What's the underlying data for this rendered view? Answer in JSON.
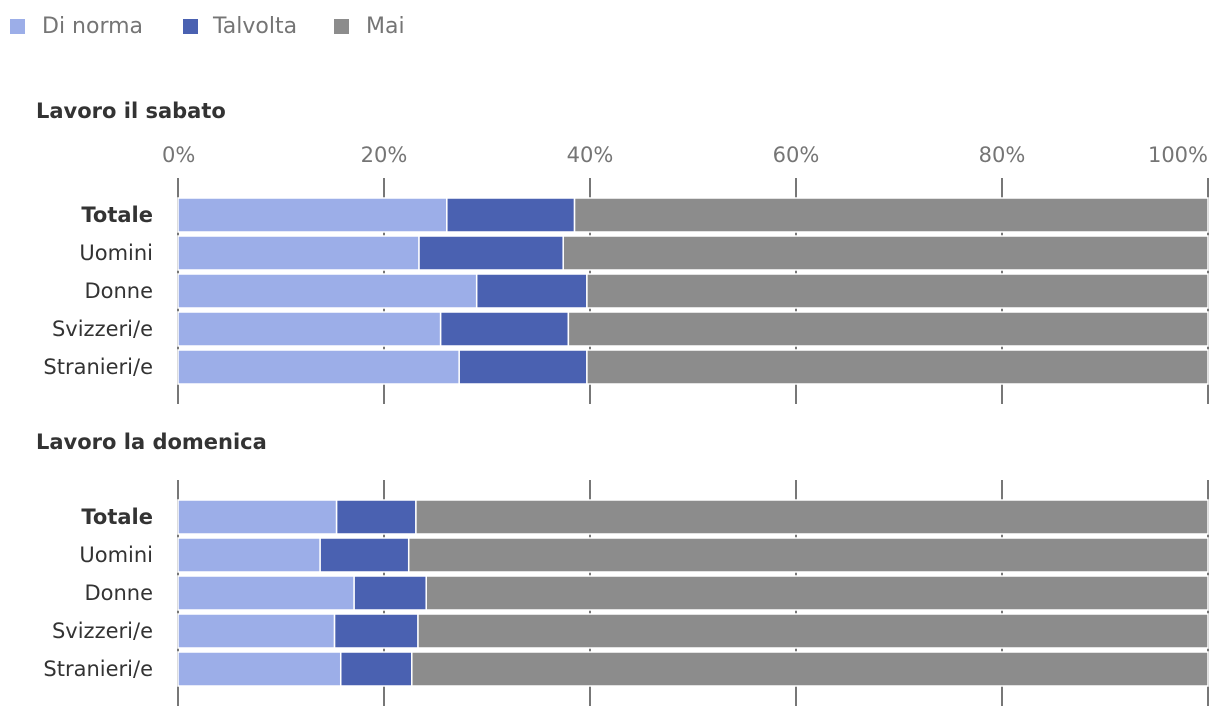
{
  "chart_data": {
    "type": "bar",
    "orientation": "horizontal",
    "stacked": true,
    "legend": [
      {
        "name": "Di norma",
        "color": "#9caee8"
      },
      {
        "name": "Talvolta",
        "color": "#4a61b1"
      },
      {
        "name": "Mai",
        "color": "#8c8c8c"
      }
    ],
    "xlim": [
      0,
      100
    ],
    "xticks": [
      {
        "value": 0,
        "label": "0%"
      },
      {
        "value": 20,
        "label": "20%"
      },
      {
        "value": 40,
        "label": "40%"
      },
      {
        "value": 60,
        "label": "60%"
      },
      {
        "value": 80,
        "label": "80%"
      },
      {
        "value": 100,
        "label": "100%"
      }
    ],
    "panels": [
      {
        "title": "Lavoro il sabato",
        "categories": [
          "Totale",
          "Uomini",
          "Donne",
          "Svizzeri/e",
          "Stranieri/e"
        ],
        "bold_first": true,
        "series": [
          {
            "name": "Di norma",
            "values": [
              26.1,
              23.4,
              29.0,
              25.5,
              27.3
            ]
          },
          {
            "name": "Talvolta",
            "values": [
              12.4,
              14.0,
              10.7,
              12.4,
              12.4
            ]
          },
          {
            "name": "Mai",
            "values": [
              61.5,
              62.6,
              60.3,
              62.1,
              60.3
            ]
          }
        ]
      },
      {
        "title": "Lavoro la domenica",
        "categories": [
          "Totale",
          "Uomini",
          "Donne",
          "Svizzeri/e",
          "Stranieri/e"
        ],
        "bold_first": true,
        "series": [
          {
            "name": "Di norma",
            "values": [
              15.4,
              13.8,
              17.1,
              15.2,
              15.8
            ]
          },
          {
            "name": "Talvolta",
            "values": [
              7.7,
              8.6,
              7.0,
              8.1,
              6.9
            ]
          },
          {
            "name": "Mai",
            "values": [
              76.9,
              77.6,
              75.9,
              76.7,
              77.3
            ]
          }
        ]
      }
    ]
  }
}
